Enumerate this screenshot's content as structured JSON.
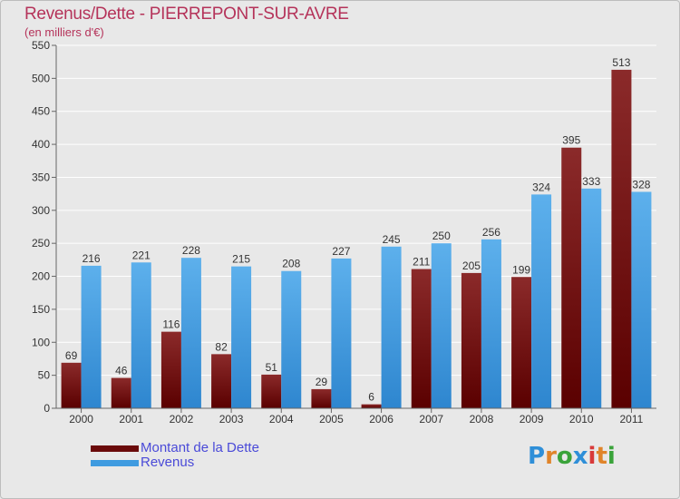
{
  "colors": {
    "debt_top": "#8b2a2a",
    "debt_bottom": "#5a0000",
    "revenue_top": "#5db0ec",
    "revenue_bottom": "#2e86cf",
    "title": "#b5335a",
    "legend_text": "#4a4ad8",
    "axis_text": "#333333",
    "grid": "#ffffff",
    "background": "#e8e8e8"
  },
  "header": {
    "title": "Revenus/Dette - PIERREPONT-SUR-AVRE",
    "subtitle": "(en milliers d'€)"
  },
  "legend": {
    "debt_label": "Montant de la Dette",
    "revenue_label": "Revenus"
  },
  "logo": {
    "letters": [
      "P",
      "r",
      "o",
      "x",
      "i",
      "t",
      "i"
    ],
    "letter_colors": [
      "#2f8fd8",
      "#e0842a",
      "#3aa33a",
      "#2f8fd8",
      "#d83a3a",
      "#e0842a",
      "#3aa33a"
    ]
  },
  "chart_data": {
    "type": "bar",
    "title": "Revenus/Dette - PIERREPONT-SUR-AVRE",
    "subtitle": "(en milliers d'€)",
    "xlabel": "",
    "ylabel": "",
    "ylim": [
      0,
      550
    ],
    "yticks": [
      0,
      50,
      100,
      150,
      200,
      250,
      300,
      350,
      400,
      450,
      500,
      550
    ],
    "grid": true,
    "legend_position": "bottom-left",
    "categories": [
      "2000",
      "2001",
      "2002",
      "2003",
      "2004",
      "2005",
      "2006",
      "2007",
      "2008",
      "2009",
      "2010",
      "2011"
    ],
    "series": [
      {
        "name": "Montant de la Dette",
        "values": [
          69,
          46,
          116,
          82,
          51,
          29,
          6,
          211,
          205,
          199,
          395,
          513
        ]
      },
      {
        "name": "Revenus",
        "values": [
          216,
          221,
          228,
          215,
          208,
          227,
          245,
          250,
          256,
          324,
          333,
          328
        ]
      }
    ]
  }
}
